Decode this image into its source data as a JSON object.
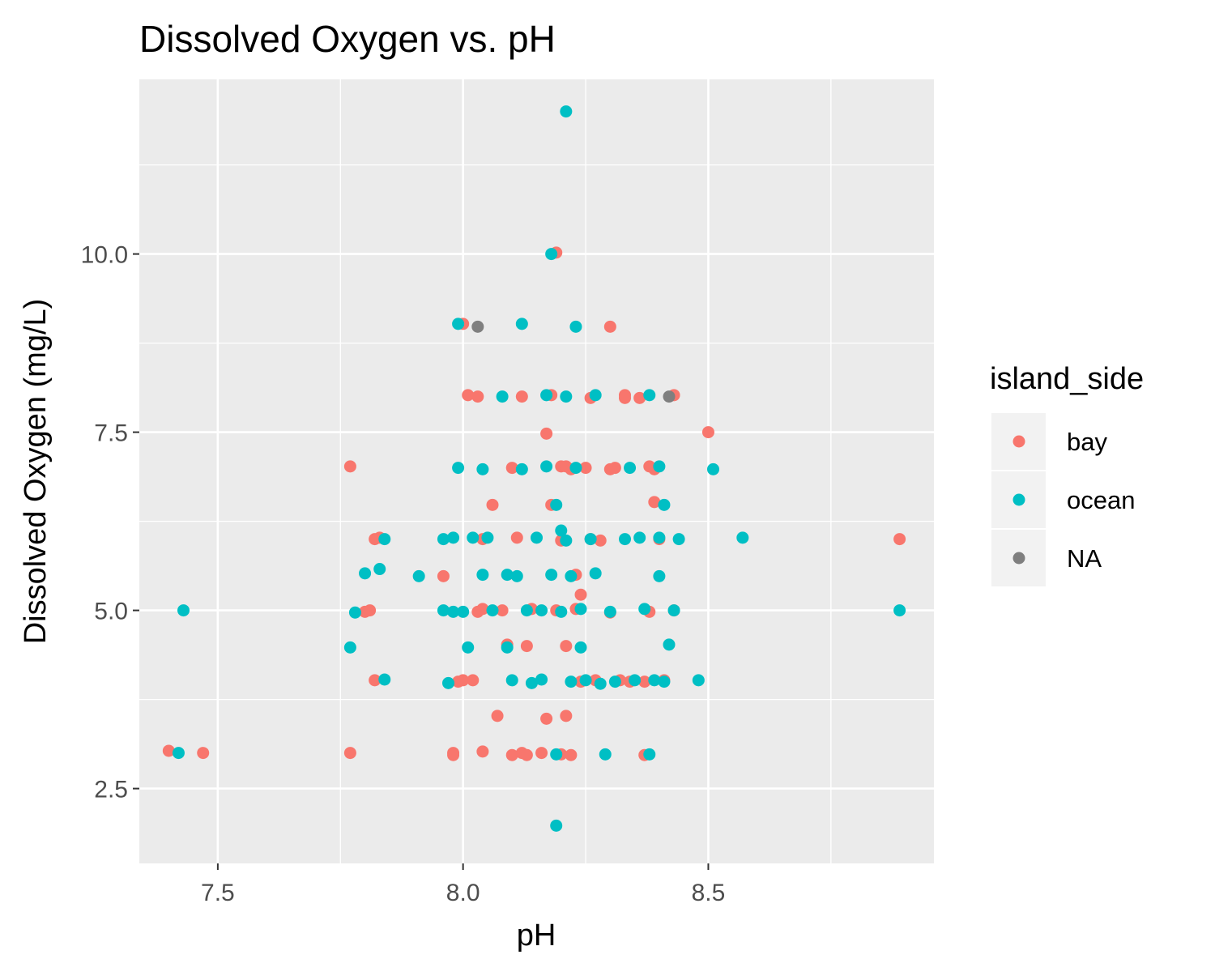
{
  "chart_data": {
    "type": "scatter",
    "title": "Dissolved Oxygen vs. pH",
    "xlabel": "pH",
    "ylabel": "Dissolved Oxygen (mg/L)",
    "xlim": [
      7.34,
      8.96
    ],
    "ylim": [
      1.45,
      12.45
    ],
    "x_ticks": [
      7.5,
      8.0,
      8.5
    ],
    "x_tick_labels": [
      "7.5",
      "8.0",
      "8.5"
    ],
    "y_ticks": [
      2.5,
      5.0,
      7.5,
      10.0
    ],
    "y_tick_labels": [
      "2.5",
      "5.0",
      "7.5",
      "10.0"
    ],
    "grid": true,
    "panel_background": "#EBEBEB",
    "legend": {
      "title": "island_side",
      "position": "right",
      "entries": [
        {
          "label": "bay",
          "color": "#F8766D"
        },
        {
          "label": "ocean",
          "color": "#00BFC4"
        },
        {
          "label": "NA",
          "color": "#7F7F7F"
        }
      ]
    },
    "series": [
      {
        "name": "bay",
        "color": "#F8766D",
        "x": [
          7.4,
          7.47,
          7.77,
          7.77,
          7.8,
          7.81,
          7.82,
          7.83,
          7.82,
          7.96,
          7.98,
          7.98,
          7.99,
          8.0,
          8.0,
          8.01,
          8.02,
          8.03,
          8.03,
          8.04,
          8.04,
          8.04,
          8.06,
          8.07,
          8.08,
          8.09,
          8.1,
          8.1,
          8.11,
          8.12,
          8.12,
          8.13,
          8.13,
          8.14,
          8.16,
          8.17,
          8.17,
          8.18,
          8.18,
          8.19,
          8.19,
          8.2,
          8.2,
          8.2,
          8.21,
          8.21,
          8.21,
          8.22,
          8.22,
          8.23,
          8.23,
          8.24,
          8.24,
          8.25,
          8.26,
          8.26,
          8.27,
          8.28,
          8.3,
          8.3,
          8.3,
          8.31,
          8.32,
          8.33,
          8.33,
          8.34,
          8.36,
          8.37,
          8.37,
          8.38,
          8.38,
          8.39,
          8.39,
          8.4,
          8.41,
          8.43,
          8.43,
          8.5,
          8.89
        ],
        "y": [
          3.03,
          3.0,
          7.02,
          3.0,
          4.98,
          5.0,
          4.02,
          6.02,
          6.0,
          5.48,
          2.97,
          3.0,
          4.0,
          9.02,
          4.02,
          8.02,
          4.02,
          4.98,
          8.0,
          6.0,
          3.02,
          5.02,
          6.48,
          3.52,
          5.0,
          4.52,
          2.97,
          7.0,
          6.02,
          8.0,
          3.0,
          4.5,
          2.97,
          5.02,
          3.0,
          7.48,
          3.48,
          6.48,
          8.02,
          5.0,
          10.02,
          2.98,
          7.02,
          5.98,
          4.5,
          3.52,
          7.02,
          2.97,
          6.98,
          5.5,
          5.02,
          5.22,
          4.0,
          7.0,
          6.0,
          7.98,
          4.02,
          5.98,
          6.98,
          8.98,
          4.97,
          7.0,
          4.02,
          8.02,
          7.98,
          4.0,
          7.98,
          4.0,
          2.97,
          7.02,
          4.98,
          6.98,
          6.52,
          6.0,
          4.02,
          5.0,
          8.02,
          7.5,
          6.0
        ]
      },
      {
        "name": "ocean",
        "color": "#00BFC4",
        "x": [
          7.42,
          7.43,
          7.77,
          7.78,
          7.8,
          7.83,
          7.84,
          7.84,
          7.91,
          7.96,
          7.96,
          7.97,
          7.98,
          7.98,
          7.99,
          7.99,
          8.0,
          8.01,
          8.02,
          8.04,
          8.04,
          8.05,
          8.06,
          8.08,
          8.09,
          8.09,
          8.1,
          8.11,
          8.12,
          8.12,
          8.13,
          8.14,
          8.15,
          8.16,
          8.16,
          8.17,
          8.17,
          8.18,
          8.18,
          8.19,
          8.19,
          8.19,
          8.2,
          8.2,
          8.21,
          8.21,
          8.21,
          8.22,
          8.22,
          8.23,
          8.23,
          8.24,
          8.24,
          8.25,
          8.26,
          8.27,
          8.27,
          8.28,
          8.29,
          8.3,
          8.31,
          8.33,
          8.34,
          8.35,
          8.36,
          8.37,
          8.38,
          8.38,
          8.39,
          8.4,
          8.4,
          8.4,
          8.41,
          8.41,
          8.42,
          8.43,
          8.44,
          8.48,
          8.51,
          8.57,
          8.89
        ],
        "y": [
          3.0,
          5.0,
          4.48,
          4.97,
          5.52,
          5.58,
          4.03,
          6.0,
          5.48,
          6.0,
          5.0,
          3.98,
          6.02,
          4.98,
          7.0,
          9.02,
          4.98,
          4.48,
          6.02,
          6.98,
          5.5,
          6.02,
          5.0,
          8.0,
          4.48,
          5.5,
          4.02,
          5.48,
          9.02,
          6.98,
          5.0,
          3.98,
          6.02,
          4.03,
          5.0,
          7.02,
          8.02,
          10.0,
          5.5,
          6.48,
          2.98,
          1.98,
          6.12,
          4.98,
          8.0,
          5.98,
          12.0,
          5.48,
          4.0,
          7.0,
          8.98,
          4.48,
          5.02,
          4.02,
          6.0,
          8.02,
          5.52,
          3.97,
          2.98,
          4.98,
          4.0,
          6.0,
          7.0,
          4.02,
          6.02,
          5.02,
          8.02,
          2.98,
          4.02,
          6.02,
          7.02,
          5.48,
          4.0,
          6.48,
          4.52,
          5.0,
          6.0,
          4.02,
          6.98,
          6.02,
          5.0
        ]
      },
      {
        "name": "NA",
        "color": "#7F7F7F",
        "x": [
          8.03,
          8.42
        ],
        "y": [
          8.98,
          8.0
        ]
      }
    ]
  }
}
